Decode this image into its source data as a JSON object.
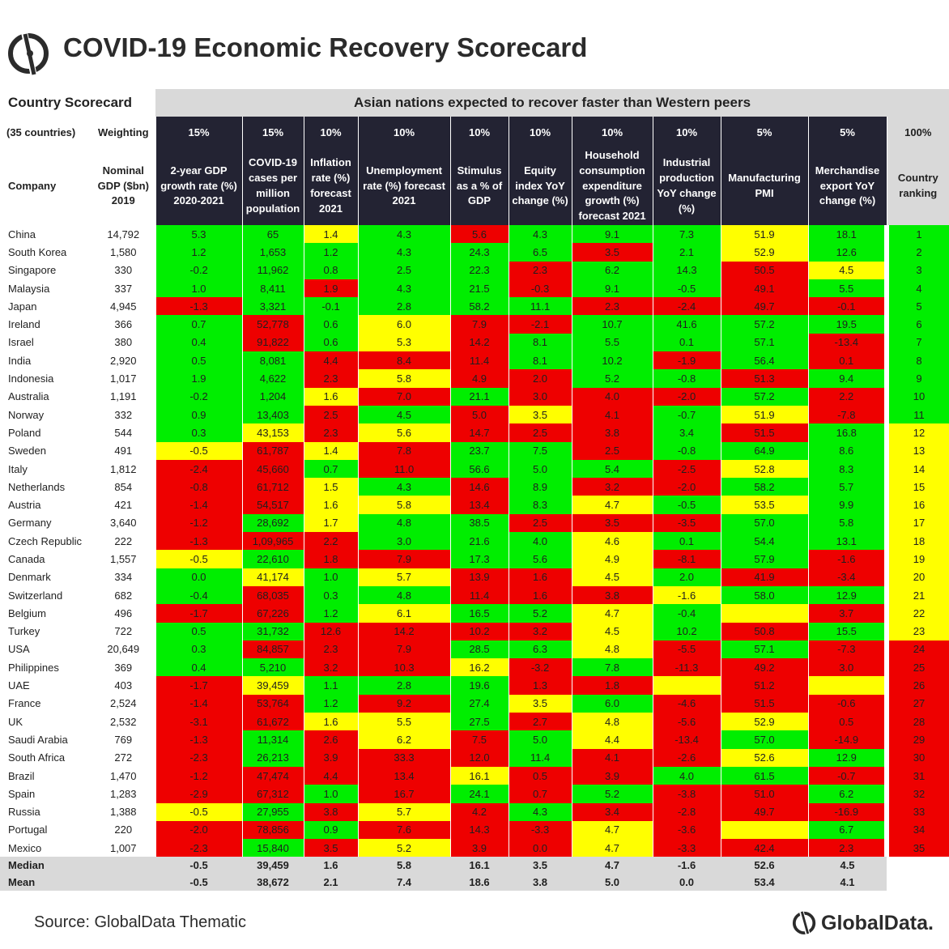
{
  "title": "COVID-19 Economic Recovery Scorecard",
  "header": {
    "country_scorecard": "Country Scorecard",
    "subtitle": "Asian nations expected to recover faster than Western peers",
    "countries_note": "(35 countries)",
    "weighting_label": "Weighting",
    "company_label": "Company",
    "gdp_label": "Nominal GDP ($bn) 2019"
  },
  "chart_data": {
    "type": "table",
    "columns": [
      {
        "label": "2-year GDP growth rate (%) 2020-2021",
        "weight": "15%"
      },
      {
        "label": "COVID-19 cases per million population",
        "weight": "15%"
      },
      {
        "label": "Inflation rate (%) forecast 2021",
        "weight": "10%"
      },
      {
        "label": "Unemployment rate (%) forecast 2021",
        "weight": "10%"
      },
      {
        "label": "Stimulus as a % of GDP",
        "weight": "10%"
      },
      {
        "label": "Equity index YoY change (%)",
        "weight": "10%"
      },
      {
        "label": "Household consumption expenditure growth (%) forecast 2021",
        "weight": "10%"
      },
      {
        "label": "Industrial production YoY change (%)",
        "weight": "10%"
      },
      {
        "label": "Manufacturing PMI",
        "weight": "5%"
      },
      {
        "label": "Merchandise export YoY change (%)",
        "weight": "5%"
      },
      {
        "label": "Country ranking",
        "weight": "100%"
      }
    ],
    "rows": [
      {
        "country": "China",
        "gdp": "14,792",
        "values": [
          "5.3",
          "65",
          "1.4",
          "4.3",
          "5.6",
          "4.3",
          "9.1",
          "7.3",
          "51.9",
          "18.1",
          "1"
        ],
        "colors": [
          "g",
          "g",
          "y",
          "g",
          "r",
          "g",
          "g",
          "g",
          "y",
          "g",
          "g"
        ]
      },
      {
        "country": "South Korea",
        "gdp": "1,580",
        "values": [
          "1.2",
          "1,653",
          "1.2",
          "4.3",
          "24.3",
          "6.5",
          "3.5",
          "2.1",
          "52.9",
          "12.6",
          "2"
        ],
        "colors": [
          "g",
          "g",
          "g",
          "g",
          "g",
          "g",
          "r",
          "g",
          "y",
          "g",
          "g"
        ]
      },
      {
        "country": "Singapore",
        "gdp": "330",
        "values": [
          "-0.2",
          "11,962",
          "0.8",
          "2.5",
          "22.3",
          "2.3",
          "6.2",
          "14.3",
          "50.5",
          "4.5",
          "3"
        ],
        "colors": [
          "g",
          "g",
          "g",
          "g",
          "g",
          "r",
          "g",
          "g",
          "r",
          "y",
          "g"
        ]
      },
      {
        "country": "Malaysia",
        "gdp": "337",
        "values": [
          "1.0",
          "8,411",
          "1.9",
          "4.3",
          "21.5",
          "-0.3",
          "9.1",
          "-0.5",
          "49.1",
          "5.5",
          "4"
        ],
        "colors": [
          "g",
          "g",
          "r",
          "g",
          "g",
          "r",
          "g",
          "g",
          "r",
          "g",
          "g"
        ]
      },
      {
        "country": "Japan",
        "gdp": "4,945",
        "values": [
          "-1.3",
          "3,321",
          "-0.1",
          "2.8",
          "58.2",
          "11.1",
          "2.3",
          "-2.4",
          "49.7",
          "-0.1",
          "5"
        ],
        "colors": [
          "r",
          "g",
          "g",
          "g",
          "g",
          "g",
          "r",
          "r",
          "r",
          "r",
          "g"
        ]
      },
      {
        "country": "Ireland",
        "gdp": "366",
        "values": [
          "0.7",
          "52,778",
          "0.6",
          "6.0",
          "7.9",
          "-2.1",
          "10.7",
          "41.6",
          "57.2",
          "19.5",
          "6"
        ],
        "colors": [
          "g",
          "r",
          "g",
          "y",
          "r",
          "r",
          "g",
          "g",
          "g",
          "g",
          "g"
        ]
      },
      {
        "country": "Israel",
        "gdp": "380",
        "values": [
          "0.4",
          "91,822",
          "0.6",
          "5.3",
          "14.2",
          "8.1",
          "5.5",
          "0.1",
          "57.1",
          "-13.4",
          "7"
        ],
        "colors": [
          "g",
          "r",
          "g",
          "y",
          "r",
          "g",
          "g",
          "g",
          "g",
          "r",
          "g"
        ]
      },
      {
        "country": "India",
        "gdp": "2,920",
        "values": [
          "0.5",
          "8,081",
          "4.4",
          "8.4",
          "11.4",
          "8.1",
          "10.2",
          "-1.9",
          "56.4",
          "0.1",
          "8"
        ],
        "colors": [
          "g",
          "g",
          "r",
          "r",
          "r",
          "g",
          "g",
          "r",
          "g",
          "r",
          "g"
        ]
      },
      {
        "country": "Indonesia",
        "gdp": "1,017",
        "values": [
          "1.9",
          "4,622",
          "2.3",
          "5.8",
          "4.9",
          "2.0",
          "5.2",
          "-0.8",
          "51.3",
          "9.4",
          "9"
        ],
        "colors": [
          "g",
          "g",
          "r",
          "y",
          "r",
          "r",
          "g",
          "g",
          "r",
          "g",
          "g"
        ]
      },
      {
        "country": "Australia",
        "gdp": "1,191",
        "values": [
          "-0.2",
          "1,204",
          "1.6",
          "7.0",
          "21.1",
          "3.0",
          "4.0",
          "-2.0",
          "57.2",
          "2.2",
          "10"
        ],
        "colors": [
          "g",
          "g",
          "y",
          "r",
          "g",
          "r",
          "r",
          "r",
          "g",
          "r",
          "g"
        ]
      },
      {
        "country": "Norway",
        "gdp": "332",
        "values": [
          "0.9",
          "13,403",
          "2.5",
          "4.5",
          "5.0",
          "3.5",
          "4.1",
          "-0.7",
          "51.9",
          "-7.8",
          "11"
        ],
        "colors": [
          "g",
          "g",
          "r",
          "g",
          "r",
          "y",
          "r",
          "g",
          "y",
          "r",
          "g"
        ]
      },
      {
        "country": "Poland",
        "gdp": "544",
        "values": [
          "0.3",
          "43,153",
          "2.3",
          "5.6",
          "14.7",
          "2.5",
          "3.8",
          "3.4",
          "51.5",
          "16.8",
          "12"
        ],
        "colors": [
          "g",
          "y",
          "r",
          "y",
          "r",
          "r",
          "r",
          "g",
          "r",
          "g",
          "y"
        ]
      },
      {
        "country": "Sweden",
        "gdp": "491",
        "values": [
          "-0.5",
          "61,787",
          "1.4",
          "7.8",
          "23.7",
          "7.5",
          "2.5",
          "-0.8",
          "64.9",
          "8.6",
          "13"
        ],
        "colors": [
          "y",
          "r",
          "y",
          "r",
          "g",
          "g",
          "r",
          "g",
          "g",
          "g",
          "y"
        ]
      },
      {
        "country": "Italy",
        "gdp": "1,812",
        "values": [
          "-2.4",
          "45,660",
          "0.7",
          "11.0",
          "56.6",
          "5.0",
          "5.4",
          "-2.5",
          "52.8",
          "8.3",
          "14"
        ],
        "colors": [
          "r",
          "r",
          "g",
          "r",
          "g",
          "g",
          "g",
          "r",
          "y",
          "g",
          "y"
        ]
      },
      {
        "country": "Netherlands",
        "gdp": "854",
        "values": [
          "-0.8",
          "61,712",
          "1.5",
          "4.3",
          "14.6",
          "8.9",
          "3.2",
          "-2.0",
          "58.2",
          "5.7",
          "15"
        ],
        "colors": [
          "r",
          "r",
          "y",
          "g",
          "r",
          "g",
          "r",
          "r",
          "g",
          "g",
          "y"
        ]
      },
      {
        "country": "Austria",
        "gdp": "421",
        "values": [
          "-1.4",
          "54,517",
          "1.6",
          "5.8",
          "13.4",
          "8.3",
          "4.7",
          "-0.5",
          "53.5",
          "9.9",
          "16"
        ],
        "colors": [
          "r",
          "r",
          "y",
          "y",
          "r",
          "g",
          "y",
          "g",
          "y",
          "g",
          "y"
        ]
      },
      {
        "country": "Germany",
        "gdp": "3,640",
        "values": [
          "-1.2",
          "28,692",
          "1.7",
          "4.8",
          "38.5",
          "2.5",
          "3.5",
          "-3.5",
          "57.0",
          "5.8",
          "17"
        ],
        "colors": [
          "r",
          "g",
          "y",
          "g",
          "g",
          "r",
          "r",
          "r",
          "g",
          "g",
          "y"
        ]
      },
      {
        "country": "Czech Republic",
        "gdp": "222",
        "values": [
          "-1.3",
          "1,09,965",
          "2.2",
          "3.0",
          "21.6",
          "4.0",
          "4.6",
          "0.1",
          "54.4",
          "13.1",
          "18"
        ],
        "colors": [
          "r",
          "r",
          "r",
          "g",
          "g",
          "g",
          "y",
          "g",
          "g",
          "g",
          "y"
        ]
      },
      {
        "country": "Canada",
        "gdp": "1,557",
        "values": [
          "-0.5",
          "22,610",
          "1.8",
          "7.9",
          "17.3",
          "5.6",
          "4.9",
          "-8.1",
          "57.9",
          "-1.6",
          "19"
        ],
        "colors": [
          "y",
          "g",
          "r",
          "r",
          "g",
          "g",
          "y",
          "r",
          "g",
          "r",
          "y"
        ]
      },
      {
        "country": "Denmark",
        "gdp": "334",
        "values": [
          "0.0",
          "41,174",
          "1.0",
          "5.7",
          "13.9",
          "1.6",
          "4.5",
          "2.0",
          "41.9",
          "-3.4",
          "20"
        ],
        "colors": [
          "g",
          "y",
          "g",
          "y",
          "r",
          "r",
          "y",
          "g",
          "r",
          "r",
          "y"
        ]
      },
      {
        "country": "Switzerland",
        "gdp": "682",
        "values": [
          "-0.4",
          "68,035",
          "0.3",
          "4.8",
          "11.4",
          "1.6",
          "3.8",
          "-1.6",
          "58.0",
          "12.9",
          "21"
        ],
        "colors": [
          "g",
          "r",
          "g",
          "g",
          "r",
          "r",
          "r",
          "y",
          "g",
          "g",
          "y"
        ]
      },
      {
        "country": "Belgium",
        "gdp": "496",
        "values": [
          "-1.7",
          "67,226",
          "1.2",
          "6.1",
          "16.5",
          "5.2",
          "4.7",
          "-0.4",
          "",
          "3.7",
          "22"
        ],
        "colors": [
          "r",
          "r",
          "g",
          "y",
          "g",
          "g",
          "y",
          "g",
          "y",
          "r",
          "y"
        ]
      },
      {
        "country": "Turkey",
        "gdp": "722",
        "values": [
          "0.5",
          "31,732",
          "12.6",
          "14.2",
          "10.2",
          "3.2",
          "4.5",
          "10.2",
          "50.8",
          "15.5",
          "23"
        ],
        "colors": [
          "g",
          "g",
          "r",
          "r",
          "r",
          "r",
          "y",
          "g",
          "r",
          "g",
          "y"
        ]
      },
      {
        "country": "USA",
        "gdp": "20,649",
        "values": [
          "0.3",
          "84,857",
          "2.3",
          "7.9",
          "28.5",
          "6.3",
          "4.8",
          "-5.5",
          "57.1",
          "-7.3",
          "24"
        ],
        "colors": [
          "g",
          "r",
          "r",
          "r",
          "g",
          "g",
          "y",
          "r",
          "g",
          "r",
          "r"
        ]
      },
      {
        "country": "Philippines",
        "gdp": "369",
        "values": [
          "0.4",
          "5,210",
          "3.2",
          "10.3",
          "16.2",
          "-3.2",
          "7.8",
          "-11.3",
          "49.2",
          "3.0",
          "25"
        ],
        "colors": [
          "g",
          "g",
          "r",
          "r",
          "y",
          "r",
          "g",
          "r",
          "r",
          "r",
          "r"
        ]
      },
      {
        "country": "UAE",
        "gdp": "403",
        "values": [
          "-1.7",
          "39,459",
          "1.1",
          "2.8",
          "19.6",
          "1.3",
          "1.8",
          "",
          "51.2",
          "",
          "26"
        ],
        "colors": [
          "r",
          "y",
          "g",
          "g",
          "g",
          "r",
          "r",
          "y",
          "r",
          "y",
          "r"
        ]
      },
      {
        "country": "France",
        "gdp": "2,524",
        "values": [
          "-1.4",
          "53,764",
          "1.2",
          "9.2",
          "27.4",
          "3.5",
          "6.0",
          "-4.6",
          "51.5",
          "-0.6",
          "27"
        ],
        "colors": [
          "r",
          "r",
          "g",
          "r",
          "g",
          "y",
          "g",
          "r",
          "r",
          "r",
          "r"
        ]
      },
      {
        "country": "UK",
        "gdp": "2,532",
        "values": [
          "-3.1",
          "61,672",
          "1.6",
          "5.5",
          "27.5",
          "2.7",
          "4.8",
          "-5.6",
          "52.9",
          "0.5",
          "28"
        ],
        "colors": [
          "r",
          "r",
          "y",
          "y",
          "g",
          "r",
          "y",
          "r",
          "y",
          "r",
          "r"
        ]
      },
      {
        "country": "Saudi Arabia",
        "gdp": "769",
        "values": [
          "-1.3",
          "11,314",
          "2.6",
          "6.2",
          "7.5",
          "5.0",
          "4.4",
          "-13.4",
          "57.0",
          "-14.9",
          "29"
        ],
        "colors": [
          "r",
          "g",
          "r",
          "y",
          "r",
          "g",
          "y",
          "r",
          "g",
          "r",
          "r"
        ]
      },
      {
        "country": "South Africa",
        "gdp": "272",
        "values": [
          "-2.3",
          "26,213",
          "3.9",
          "33.3",
          "12.0",
          "11.4",
          "4.1",
          "-2.6",
          "52.6",
          "12.9",
          "30"
        ],
        "colors": [
          "r",
          "g",
          "r",
          "r",
          "r",
          "g",
          "r",
          "r",
          "y",
          "g",
          "r"
        ]
      },
      {
        "country": "Brazil",
        "gdp": "1,470",
        "values": [
          "-1.2",
          "47,474",
          "4.4",
          "13.4",
          "16.1",
          "0.5",
          "3.9",
          "4.0",
          "61.5",
          "-0.7",
          "31"
        ],
        "colors": [
          "r",
          "r",
          "r",
          "r",
          "y",
          "r",
          "r",
          "g",
          "g",
          "r",
          "r"
        ]
      },
      {
        "country": "Spain",
        "gdp": "1,283",
        "values": [
          "-2.9",
          "67,312",
          "1.0",
          "16.7",
          "24.1",
          "0.7",
          "5.2",
          "-3.8",
          "51.0",
          "6.2",
          "32"
        ],
        "colors": [
          "r",
          "r",
          "g",
          "r",
          "g",
          "r",
          "g",
          "r",
          "r",
          "g",
          "r"
        ]
      },
      {
        "country": "Russia",
        "gdp": "1,388",
        "values": [
          "-0.5",
          "27,955",
          "3.8",
          "5.7",
          "4.2",
          "4.3",
          "3.4",
          "-2.8",
          "49.7",
          "-16.9",
          "33"
        ],
        "colors": [
          "y",
          "g",
          "r",
          "y",
          "r",
          "g",
          "r",
          "r",
          "r",
          "r",
          "r"
        ]
      },
      {
        "country": "Portugal",
        "gdp": "220",
        "values": [
          "-2.0",
          "78,856",
          "0.9",
          "7.6",
          "14.3",
          "-3.3",
          "4.7",
          "-3.6",
          "",
          "6.7",
          "34"
        ],
        "colors": [
          "r",
          "r",
          "g",
          "r",
          "r",
          "r",
          "y",
          "r",
          "y",
          "g",
          "r"
        ]
      },
      {
        "country": "Mexico",
        "gdp": "1,007",
        "values": [
          "-2.3",
          "15,840",
          "3.5",
          "5.2",
          "3.9",
          "0.0",
          "4.7",
          "-3.3",
          "42.4",
          "2.3",
          "35"
        ],
        "colors": [
          "r",
          "g",
          "r",
          "y",
          "r",
          "r",
          "y",
          "r",
          "r",
          "r",
          "r"
        ]
      }
    ],
    "summary": [
      {
        "label": "Median",
        "values": [
          "-0.5",
          "39,459",
          "1.6",
          "5.8",
          "16.1",
          "3.5",
          "4.7",
          "-1.6",
          "52.6",
          "4.5",
          ""
        ]
      },
      {
        "label": "Mean",
        "values": [
          "-0.5",
          "38,672",
          "2.1",
          "7.4",
          "18.6",
          "3.8",
          "5.0",
          "0.0",
          "53.4",
          "4.1",
          ""
        ]
      }
    ]
  },
  "colors": {
    "green": "#00ee00",
    "yellow": "#ffff00",
    "red": "#ee0000",
    "dark": "#232333",
    "grey": "#d9d9d9"
  },
  "footer": {
    "source": "Source: GlobalData Thematic",
    "brand": "GlobalData."
  }
}
